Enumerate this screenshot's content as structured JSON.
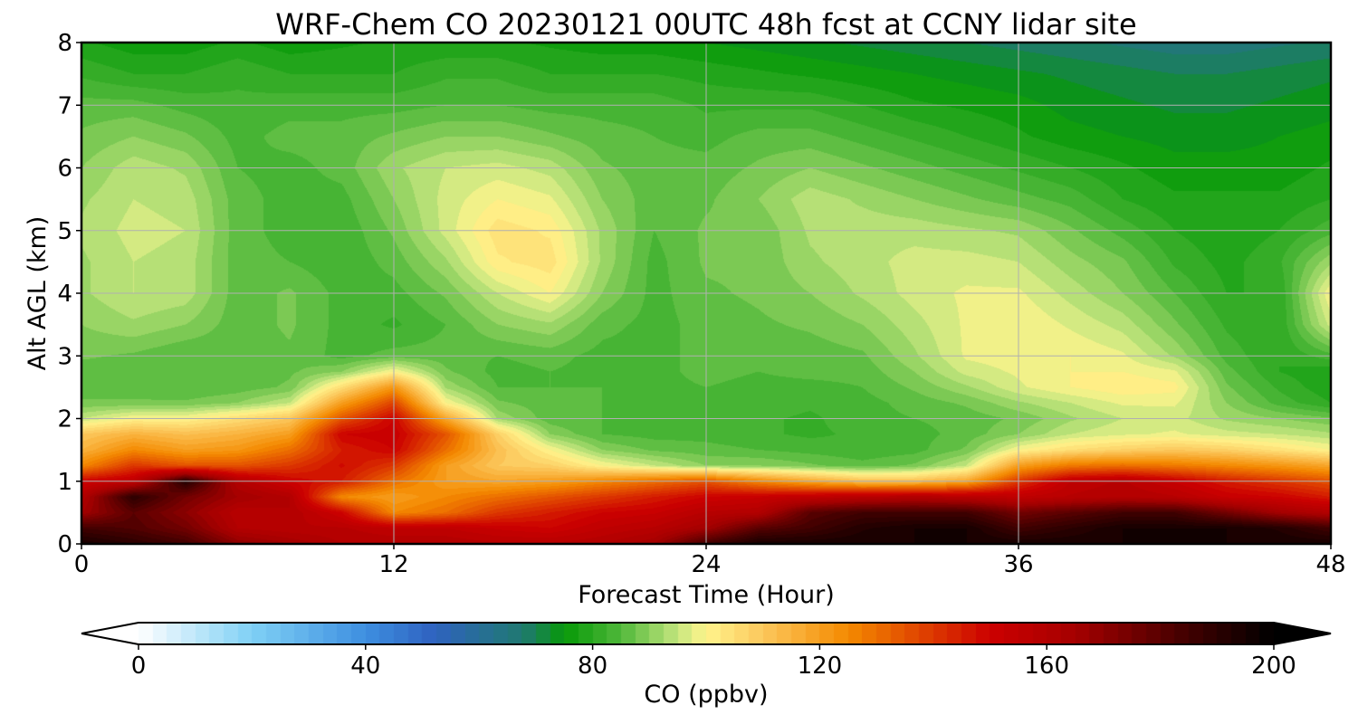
{
  "chart_data": {
    "type": "heatmap",
    "title": "WRF-Chem CO  20230121 00UTC 48h fcst at CCNY lidar site",
    "xlabel": "Forecast Time (Hour)",
    "ylabel": "Alt AGL (km)",
    "xlim": [
      0,
      48
    ],
    "ylim": [
      0,
      8
    ],
    "x_ticks": [
      "0",
      "12",
      "24",
      "36",
      "48"
    ],
    "y_ticks": [
      "0",
      "1",
      "2",
      "3",
      "4",
      "5",
      "6",
      "7",
      "8"
    ],
    "grid": true,
    "x": [
      0,
      2,
      4,
      6,
      8,
      10,
      12,
      14,
      16,
      18,
      20,
      22,
      24,
      26,
      28,
      30,
      32,
      34,
      36,
      38,
      40,
      42,
      44,
      46,
      48
    ],
    "y": [
      0,
      0.25,
      0.5,
      0.75,
      1,
      1.25,
      1.5,
      1.75,
      2,
      2.25,
      2.5,
      2.75,
      3,
      3.5,
      4,
      4.5,
      5,
      5.5,
      6,
      6.5,
      7,
      7.5,
      8
    ],
    "z": [
      [
        195,
        190,
        185,
        170,
        165,
        160,
        160,
        160,
        158,
        158,
        160,
        165,
        185,
        195,
        195,
        195,
        195,
        195,
        195,
        195,
        195,
        195,
        195,
        195,
        195
      ],
      [
        185,
        182,
        175,
        160,
        158,
        158,
        155,
        155,
        152,
        150,
        155,
        158,
        165,
        180,
        185,
        192,
        195,
        195,
        185,
        190,
        195,
        195,
        195,
        192,
        185
      ],
      [
        165,
        180,
        170,
        158,
        160,
        150,
        125,
        130,
        140,
        145,
        150,
        152,
        158,
        160,
        180,
        185,
        185,
        185,
        175,
        180,
        185,
        185,
        175,
        165,
        160
      ],
      [
        160,
        190,
        175,
        165,
        160,
        125,
        120,
        125,
        130,
        135,
        140,
        145,
        150,
        152,
        155,
        158,
        160,
        158,
        155,
        158,
        160,
        158,
        152,
        150,
        145
      ],
      [
        150,
        155,
        192,
        160,
        150,
        145,
        130,
        120,
        118,
        120,
        125,
        130,
        135,
        125,
        118,
        112,
        112,
        118,
        140,
        155,
        158,
        152,
        145,
        140,
        135
      ],
      [
        125,
        140,
        135,
        135,
        140,
        148,
        140,
        120,
        110,
        108,
        100,
        95,
        90,
        90,
        88,
        86,
        88,
        95,
        120,
        128,
        130,
        128,
        125,
        122,
        118
      ],
      [
        115,
        125,
        120,
        122,
        130,
        145,
        150,
        130,
        112,
        100,
        90,
        87,
        86,
        85,
        84,
        83,
        84,
        88,
        100,
        105,
        108,
        110,
        108,
        104,
        100
      ],
      [
        110,
        115,
        112,
        115,
        120,
        150,
        152,
        135,
        108,
        90,
        85,
        84,
        84,
        83,
        82,
        83,
        84,
        86,
        90,
        95,
        97,
        98,
        96,
        95,
        93
      ],
      [
        95,
        100,
        100,
        105,
        110,
        135,
        150,
        118,
        92,
        86,
        85,
        84,
        84,
        83,
        82,
        84,
        85,
        86,
        88,
        92,
        95,
        96,
        92,
        90,
        88
      ],
      [
        88,
        88,
        88,
        90,
        95,
        120,
        138,
        100,
        88,
        86,
        85,
        84,
        84,
        84,
        83,
        84,
        86,
        88,
        92,
        95,
        98,
        98,
        90,
        84,
        80
      ],
      [
        86,
        86,
        85,
        86,
        88,
        105,
        122,
        92,
        85,
        85,
        85,
        84,
        85,
        84,
        84,
        85,
        88,
        92,
        97,
        100,
        102,
        101,
        88,
        82,
        78
      ],
      [
        86,
        86,
        85,
        86,
        87,
        90,
        100,
        88,
        84,
        85,
        84,
        84,
        86,
        85,
        86,
        86,
        90,
        96,
        98,
        100,
        100,
        98,
        86,
        80,
        78
      ],
      [
        88,
        87,
        85,
        86,
        87,
        84,
        86,
        86,
        85,
        86,
        84,
        84,
        86,
        86,
        86,
        87,
        92,
        98,
        99,
        100,
        98,
        92,
        84,
        80,
        84
      ],
      [
        90,
        92,
        90,
        86,
        88,
        84,
        82,
        85,
        90,
        92,
        86,
        84,
        86,
        87,
        88,
        90,
        94,
        98,
        100,
        97,
        94,
        88,
        82,
        80,
        96
      ],
      [
        92,
        95,
        94,
        86,
        88,
        84,
        84,
        88,
        95,
        100,
        90,
        84,
        87,
        88,
        90,
        93,
        96,
        98,
        98,
        94,
        90,
        85,
        80,
        80,
        100
      ],
      [
        92,
        95,
        94,
        86,
        85,
        83,
        86,
        92,
        102,
        104,
        92,
        84,
        88,
        88,
        92,
        94,
        96,
        96,
        95,
        91,
        88,
        82,
        79,
        82,
        92
      ],
      [
        93,
        96,
        95,
        86,
        84,
        83,
        88,
        96,
        104,
        102,
        92,
        85,
        88,
        88,
        93,
        94,
        94,
        93,
        92,
        88,
        84,
        80,
        78,
        80,
        84
      ],
      [
        92,
        95,
        94,
        86,
        84,
        84,
        90,
        96,
        100,
        98,
        90,
        86,
        87,
        90,
        94,
        92,
        90,
        88,
        86,
        84,
        80,
        78,
        78,
        78,
        80
      ],
      [
        90,
        94,
        92,
        85,
        84,
        86,
        92,
        95,
        96,
        94,
        88,
        86,
        86,
        88,
        90,
        88,
        86,
        84,
        82,
        80,
        78,
        76,
        76,
        76,
        78
      ],
      [
        88,
        90,
        88,
        84,
        86,
        86,
        88,
        90,
        90,
        88,
        86,
        85,
        84,
        86,
        86,
        84,
        82,
        80,
        78,
        76,
        75,
        74,
        74,
        75,
        76
      ],
      [
        86,
        86,
        84,
        83,
        84,
        84,
        84,
        85,
        85,
        84,
        84,
        84,
        82,
        82,
        82,
        80,
        78,
        77,
        76,
        74,
        73,
        72,
        72,
        73,
        74
      ],
      [
        82,
        80,
        80,
        82,
        80,
        80,
        80,
        82,
        82,
        80,
        80,
        80,
        79,
        78,
        77,
        76,
        75,
        74,
        73,
        72,
        71,
        70,
        70,
        71,
        72
      ],
      [
        78,
        76,
        76,
        78,
        76,
        77,
        78,
        78,
        78,
        77,
        76,
        76,
        75,
        74,
        73,
        72,
        71,
        70,
        69,
        68,
        67,
        66,
        66,
        67,
        68
      ]
    ],
    "colorbar": {
      "label": "CO  (ppbv)",
      "range": [
        0,
        200
      ],
      "ticks": [
        "0",
        "40",
        "80",
        "120",
        "160",
        "200"
      ],
      "extend": "both",
      "orientation": "horizontal",
      "placement": "bottom",
      "colors": [
        {
          "v": 0,
          "c": "#ffffff"
        },
        {
          "v": 20,
          "c": "#7fd0f5"
        },
        {
          "v": 40,
          "c": "#3e8fe0"
        },
        {
          "v": 52,
          "c": "#2f62c0"
        },
        {
          "v": 68,
          "c": "#1f7a6e"
        },
        {
          "v": 75,
          "c": "#079908"
        },
        {
          "v": 85,
          "c": "#50b83a"
        },
        {
          "v": 95,
          "c": "#c5e67f"
        },
        {
          "v": 100,
          "c": "#fff48c"
        },
        {
          "v": 110,
          "c": "#fcc75c"
        },
        {
          "v": 125,
          "c": "#f48a00"
        },
        {
          "v": 150,
          "c": "#cc0000"
        },
        {
          "v": 165,
          "c": "#a50000"
        },
        {
          "v": 185,
          "c": "#400000"
        },
        {
          "v": 200,
          "c": "#000000"
        }
      ]
    }
  }
}
